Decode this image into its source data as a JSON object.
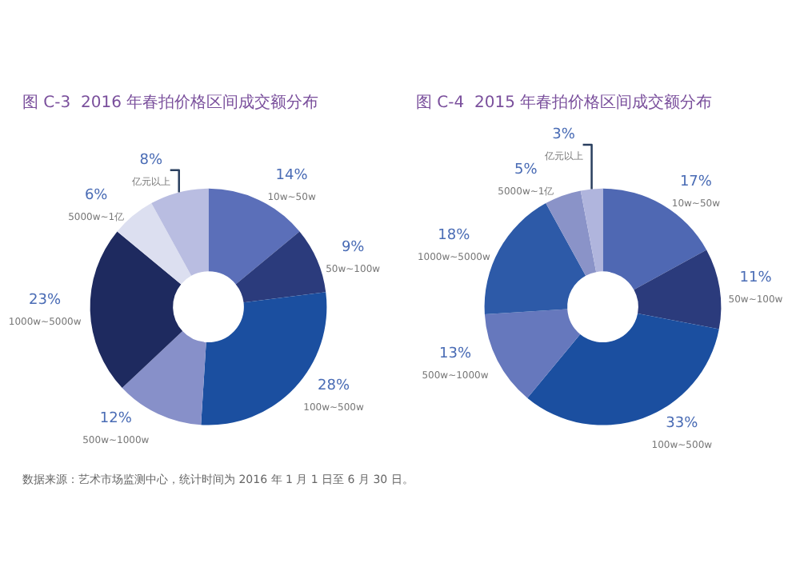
{
  "chart_data": [
    {
      "type": "donut",
      "title": "图 C-3  2016 年春拍价格区间成交额分布",
      "categories": [
        "10w~50w",
        "50w~100w",
        "100w~500w",
        "500w~1000w",
        "1000w~5000w",
        "5000w~1亿",
        "亿元以上"
      ],
      "values": [
        14,
        9,
        28,
        12,
        23,
        6,
        8
      ],
      "value_labels": [
        "14%",
        "9%",
        "28%",
        "12%",
        "23%",
        "6%",
        "8%"
      ],
      "colors": [
        "#5b6fb9",
        "#2b3b7c",
        "#1b4fa0",
        "#8790c9",
        "#1e2a5f",
        "#dcdff0",
        "#b9bde1"
      ],
      "annotations": [
        "数据来源：艺术市场监测中心，统计时间为 2016 年 1 月 1 日至 6 月 30 日。"
      ]
    },
    {
      "type": "donut",
      "title": "图 C-4  2015 年春拍价格区间成交额分布",
      "categories": [
        "10w~50w",
        "50w~100w",
        "100w~500w",
        "500w~1000w",
        "1000w~5000w",
        "5000w~1亿",
        "亿元以上"
      ],
      "values": [
        17,
        11,
        33,
        13,
        18,
        5,
        3
      ],
      "value_labels": [
        "17%",
        "11%",
        "33%",
        "13%",
        "18%",
        "5%",
        "3%"
      ],
      "colors": [
        "#4f68b3",
        "#2b3b7c",
        "#1b4fa0",
        "#6678bd",
        "#2d5aa8",
        "#8a93c8",
        "#b0b5dd"
      ]
    }
  ]
}
